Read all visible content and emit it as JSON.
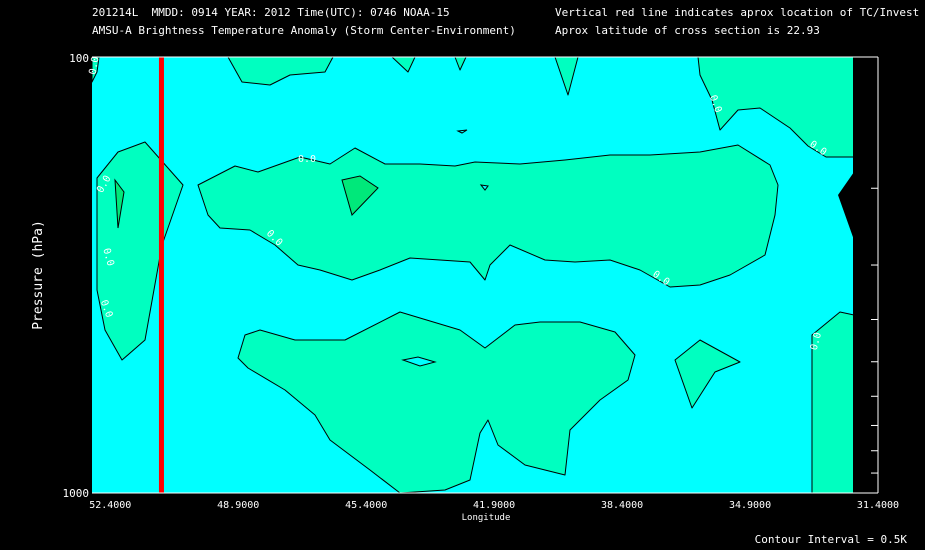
{
  "header": {
    "line1": "201214L  MMDD: 0914 YEAR: 2012 Time(UTC): 0746 NOAA-15",
    "line2": "AMSU-A Brightness Temperature Anomaly (Storm Center-Environment)",
    "line3": "Vertical red line indicates aprox location of TC/Invest",
    "line4": "Aprox latitude of cross section is 22.93"
  },
  "footer": {
    "contour_interval": "Contour Interval = 0.5K"
  },
  "colors": {
    "background_field": "#00ffff",
    "positive_fill": "#00ffc0",
    "max_fill": "#00e87a",
    "tc_line": "#ff0000",
    "missing": "#000000"
  },
  "chart_data": {
    "type": "heatmap",
    "subtype": "contour-cross-section",
    "xlabel": "Longitude",
    "ylabel": "Pressure (hPa)",
    "xlim": [
      52.9,
      31.4
    ],
    "ylim": [
      1000,
      100
    ],
    "y_scale": "log",
    "x_ticks": [
      "52.4000",
      "48.9000",
      "45.4000",
      "41.9000",
      "38.4000",
      "34.9000",
      "31.4000"
    ],
    "y_ticks": [
      "100",
      "1000"
    ],
    "tc_longitude": 51.0,
    "contour_labels": [
      "0.0",
      "0.0",
      "0.0",
      "0.0",
      "0.0",
      "0.0",
      "0.0",
      "0.0",
      "0.0",
      "0.0"
    ],
    "contour_interval_K": 0.5
  }
}
